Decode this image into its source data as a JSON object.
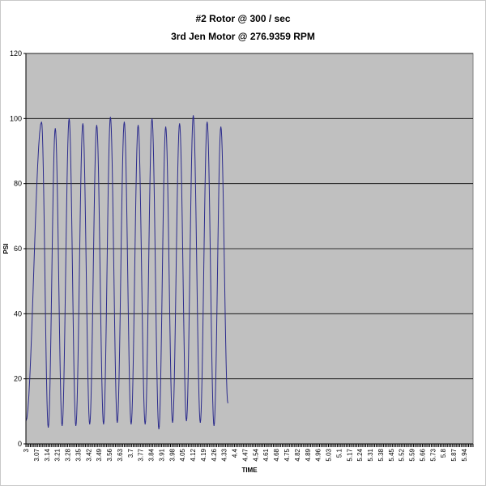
{
  "chart_data": {
    "type": "line",
    "title": "#2 Rotor @ 300 / sec",
    "subtitle": "3rd Jen Motor @ 276.9359 RPM",
    "xlabel": "TIME",
    "ylabel": "PSI",
    "ylim": [
      0,
      120
    ],
    "yticks": [
      "0",
      "20",
      "40",
      "60",
      "80",
      "100",
      "120"
    ],
    "xlim": [
      3.0,
      6.0
    ],
    "xtick_labels": [
      "3",
      "3.07",
      "3.14",
      "3.21",
      "3.28",
      "3.35",
      "3.42",
      "3.49",
      "3.56",
      "3.63",
      "3.7",
      "3.77",
      "3.84",
      "3.91",
      "3.98",
      "4.05",
      "4.12",
      "4.19",
      "4.26",
      "4.33",
      "4.4",
      "4.47",
      "4.54",
      "4.61",
      "4.68",
      "4.75",
      "4.82",
      "4.89",
      "4.96",
      "5.03",
      "5.1",
      "5.17",
      "5.24",
      "5.31",
      "5.38",
      "5.45",
      "5.52",
      "5.59",
      "5.66",
      "5.73",
      "5.8",
      "5.87",
      "5.94"
    ],
    "grid": "horizontal",
    "plot_background": "#c0c0c0",
    "line_color": "#2b2b8c",
    "series": [
      {
        "peaks": [
          {
            "x": 3.105,
            "y": 99
          },
          {
            "x": 3.197,
            "y": 97
          },
          {
            "x": 3.29,
            "y": 100
          },
          {
            "x": 3.382,
            "y": 98.5
          },
          {
            "x": 3.475,
            "y": 98
          },
          {
            "x": 3.567,
            "y": 100.5
          },
          {
            "x": 3.66,
            "y": 99
          },
          {
            "x": 3.753,
            "y": 98
          },
          {
            "x": 3.846,
            "y": 100
          },
          {
            "x": 3.938,
            "y": 97.5
          },
          {
            "x": 4.031,
            "y": 98.5
          },
          {
            "x": 4.123,
            "y": 101
          },
          {
            "x": 4.216,
            "y": 99
          },
          {
            "x": 4.308,
            "y": 97.5
          }
        ],
        "troughs": [
          {
            "x": 3.0,
            "y": 7
          },
          {
            "x": 3.15,
            "y": 5
          },
          {
            "x": 3.243,
            "y": 5.5
          },
          {
            "x": 3.335,
            "y": 5.5
          },
          {
            "x": 3.428,
            "y": 6
          },
          {
            "x": 3.521,
            "y": 6
          },
          {
            "x": 3.613,
            "y": 6.5
          },
          {
            "x": 3.706,
            "y": 6
          },
          {
            "x": 3.8,
            "y": 6
          },
          {
            "x": 3.892,
            "y": 4.5
          },
          {
            "x": 3.984,
            "y": 6.5
          },
          {
            "x": 4.077,
            "y": 7
          },
          {
            "x": 4.17,
            "y": 6.5
          },
          {
            "x": 4.262,
            "y": 5.5
          },
          {
            "x": 4.355,
            "y": 12.5
          }
        ]
      }
    ]
  }
}
